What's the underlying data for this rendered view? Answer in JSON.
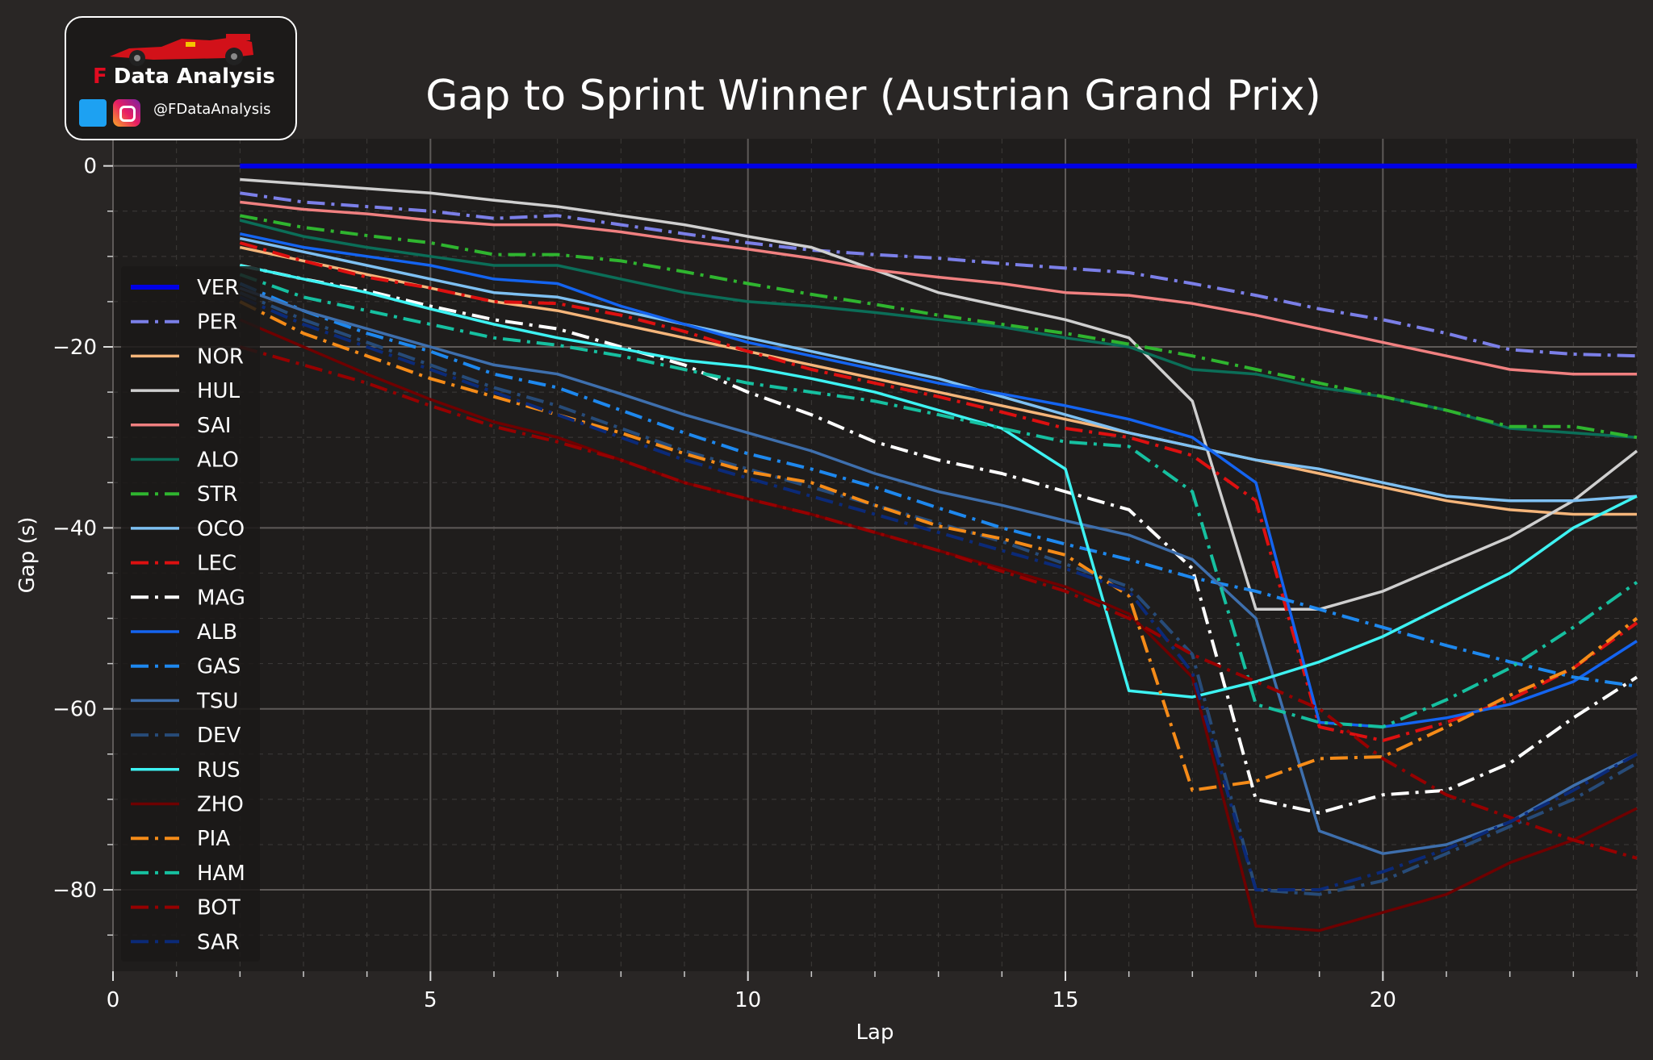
{
  "logo": {
    "brand_letter": "F",
    "brand_text": "Data Analysis",
    "handle": "@FDataAnalysis",
    "icons": [
      "race-car-icon",
      "twitter-icon",
      "instagram-icon"
    ]
  },
  "colors": {
    "background": "#292625",
    "plot_background": "#1f1d1c",
    "grid": "#5e5a58",
    "text": "#ffffff"
  },
  "chart_data": {
    "type": "line",
    "title": "Gap to Sprint Winner (Austrian Grand Prix)",
    "xlabel": "Lap",
    "ylabel": "Gap (s)",
    "xlim": [
      0,
      24
    ],
    "ylim": [
      -89,
      3
    ],
    "xticks": [
      0,
      5,
      10,
      15,
      20
    ],
    "yticks": [
      0,
      -20,
      -40,
      -60,
      -80
    ],
    "grid": true,
    "legend_position": "left",
    "x": [
      2,
      3,
      4,
      5,
      6,
      7,
      8,
      9,
      10,
      11,
      12,
      13,
      14,
      15,
      16,
      17,
      18,
      19,
      20,
      21,
      22,
      23,
      24
    ],
    "series": [
      {
        "name": "VER",
        "color": "#0000e6",
        "dash": "solid",
        "width": 6,
        "values": [
          0,
          0,
          0,
          0,
          0,
          0,
          0,
          0,
          0,
          0,
          0,
          0,
          0,
          0,
          0,
          0,
          0,
          0,
          0,
          0,
          0,
          0,
          0
        ]
      },
      {
        "name": "PER",
        "color": "#7b7fe8",
        "dash": "dashdot",
        "width": 4,
        "values": [
          -3,
          -4,
          -4.5,
          -5,
          -5.8,
          -5.5,
          -6.5,
          -7.5,
          -8.5,
          -9.3,
          -9.8,
          -10.2,
          -10.8,
          -11.3,
          -11.8,
          -13,
          -14.3,
          -15.8,
          -17,
          -18.5,
          -20.3,
          -20.8,
          -21
        ]
      },
      {
        "name": "NOR",
        "color": "#f5b57a",
        "dash": "solid",
        "width": 3.5,
        "values": [
          -9,
          -10.5,
          -12,
          -13.5,
          -15,
          -16,
          -17.5,
          -19,
          -20.5,
          -22,
          -23.5,
          -25,
          -26.5,
          -28,
          -29.5,
          -31,
          -32.5,
          -34,
          -35.5,
          -37,
          -38,
          -38.5,
          -38.5
        ]
      },
      {
        "name": "HUL",
        "color": "#cfcfcf",
        "dash": "solid",
        "width": 3.5,
        "values": [
          -1.5,
          -2,
          -2.5,
          -3,
          -3.8,
          -4.5,
          -5.5,
          -6.5,
          -7.8,
          -9,
          -11.5,
          -14,
          -15.5,
          -17,
          -19,
          -26,
          -49,
          -49,
          -47,
          -44,
          -41,
          -37,
          -31.5
        ]
      },
      {
        "name": "SAI",
        "color": "#f08080",
        "dash": "solid",
        "width": 3.5,
        "values": [
          -4,
          -4.8,
          -5.3,
          -6,
          -6.5,
          -6.5,
          -7.3,
          -8.3,
          -9.2,
          -10.2,
          -11.5,
          -12.3,
          -13,
          -14,
          -14.3,
          -15.2,
          -16.5,
          -18,
          -19.5,
          -21,
          -22.5,
          -23,
          -23
        ]
      },
      {
        "name": "ALO",
        "color": "#0b6e58",
        "dash": "solid",
        "width": 3.5,
        "values": [
          -6,
          -7.8,
          -9,
          -10,
          -11,
          -11,
          -12.5,
          -14,
          -15,
          -15.5,
          -16.2,
          -17,
          -17.8,
          -19,
          -20,
          -22.5,
          -23,
          -24.5,
          -25.5,
          -27,
          -29,
          -29.5,
          -30
        ]
      },
      {
        "name": "STR",
        "color": "#2fb52f",
        "dash": "dashdot",
        "width": 4,
        "values": [
          -5.5,
          -6.8,
          -7.7,
          -8.5,
          -9.8,
          -9.8,
          -10.5,
          -11.7,
          -13,
          -14.2,
          -15.3,
          -16.5,
          -17.5,
          -18.5,
          -19.7,
          -21,
          -22.5,
          -24,
          -25.5,
          -27,
          -28.8,
          -28.8,
          -30
        ]
      },
      {
        "name": "OCO",
        "color": "#7ec0f2",
        "dash": "solid",
        "width": 3.5,
        "values": [
          -8,
          -9.5,
          -11,
          -12.5,
          -14,
          -14.5,
          -16,
          -17.5,
          -19,
          -20.5,
          -22,
          -23.5,
          -25.5,
          -27.5,
          -29.5,
          -31,
          -32.5,
          -33.5,
          -35,
          -36.5,
          -37,
          -37,
          -36.5
        ]
      },
      {
        "name": "LEC",
        "color": "#dd1010",
        "dash": "dashdot",
        "width": 4,
        "values": [
          -8.5,
          -10.5,
          -12.3,
          -13.5,
          -15,
          -15.2,
          -16.5,
          -18.3,
          -20.5,
          -22.5,
          -24,
          -25.5,
          -27.2,
          -29,
          -30,
          -32,
          -37,
          -62,
          -63.5,
          -61.5,
          -59,
          -55.5,
          -50.5
        ]
      },
      {
        "name": "MAG",
        "color": "#ffffff",
        "dash": "dashdot",
        "width": 4,
        "values": [
          -11,
          -12.5,
          -13.8,
          -15.5,
          -17,
          -18,
          -20,
          -22,
          -25,
          -27.5,
          -30.5,
          -32.5,
          -34,
          -36,
          -38,
          -44.5,
          -70,
          -71.5,
          -69.5,
          -69,
          -66,
          -61,
          -56.5
        ]
      },
      {
        "name": "ALB",
        "color": "#1464f0",
        "dash": "solid",
        "width": 3.5,
        "values": [
          -7.5,
          -9,
          -10,
          -11,
          -12.5,
          -13,
          -15.5,
          -17.5,
          -19.5,
          -21,
          -22.5,
          -24,
          -25.2,
          -26.5,
          -28,
          -30,
          -35,
          -61.5,
          -62,
          -61,
          -59.5,
          -57,
          -52.5
        ]
      },
      {
        "name": "GAS",
        "color": "#1e88ee",
        "dash": "dashdot",
        "width": 4,
        "values": [
          -13,
          -16,
          -18.5,
          -20.5,
          -23,
          -24.5,
          -27,
          -29.5,
          -31.8,
          -33.5,
          -35.5,
          -37.8,
          -40,
          -41.8,
          -43.5,
          -45.5,
          -47,
          -49,
          -51,
          -53,
          -54.8,
          -56.5,
          -57.5
        ]
      },
      {
        "name": "TSU",
        "color": "#3e6fad",
        "dash": "solid",
        "width": 3.5,
        "values": [
          -13.5,
          -16,
          -18,
          -20,
          -22,
          -23,
          -25.2,
          -27.5,
          -29.5,
          -31.5,
          -34,
          -36,
          -37.5,
          -39.2,
          -40.8,
          -43.5,
          -50,
          -73.5,
          -76,
          -75,
          -72.5,
          -68.5,
          -65
        ]
      },
      {
        "name": "DEV",
        "color": "#274b78",
        "dash": "dashdot",
        "width": 4,
        "values": [
          -14,
          -17,
          -19.5,
          -22,
          -24.5,
          -26.5,
          -29,
          -31.5,
          -33.5,
          -35.5,
          -37.5,
          -39.5,
          -41.5,
          -44,
          -46.5,
          -54,
          -80,
          -80.5,
          -79,
          -76,
          -73,
          -70,
          -66
        ]
      },
      {
        "name": "RUS",
        "color": "#3ef2f2",
        "dash": "solid",
        "width": 3.5,
        "values": [
          -11,
          -12.5,
          -14,
          -15.8,
          -17.5,
          -19,
          -20.2,
          -21.5,
          -22.2,
          -23.5,
          -25,
          -27,
          -29,
          -33.5,
          -58,
          -58.7,
          -57,
          -54.8,
          -52,
          -48.5,
          -45,
          -40,
          -36.5
        ]
      },
      {
        "name": "ZHO",
        "color": "#6e0000",
        "dash": "solid",
        "width": 3.5,
        "values": [
          -17,
          -20,
          -23,
          -25.8,
          -28.3,
          -30,
          -32.5,
          -35,
          -36.8,
          -38.5,
          -40.5,
          -42.5,
          -44.5,
          -46.5,
          -49.5,
          -56.5,
          -84,
          -84.5,
          -82.5,
          -80.5,
          -77,
          -74.5,
          -71
        ]
      },
      {
        "name": "PIA",
        "color": "#f58b18",
        "dash": "dashdot",
        "width": 4,
        "values": [
          -15,
          -18.5,
          -21,
          -23.5,
          -25.5,
          -27.5,
          -29.5,
          -31.8,
          -33.8,
          -35,
          -37.5,
          -39.8,
          -41.2,
          -43,
          -47.5,
          -69,
          -68,
          -65.5,
          -65.3,
          -62,
          -58.5,
          -55.5,
          -50
        ]
      },
      {
        "name": "HAM",
        "color": "#16c0a0",
        "dash": "dashdot",
        "width": 4,
        "values": [
          -12,
          -14.5,
          -16,
          -17.5,
          -19,
          -19.8,
          -21,
          -22.5,
          -24,
          -25,
          -26,
          -27.5,
          -29,
          -30.5,
          -31,
          -36,
          -59.5,
          -61.5,
          -62,
          -59,
          -55.5,
          -51,
          -46
        ]
      },
      {
        "name": "BOT",
        "color": "#960000",
        "dash": "dashdot",
        "width": 4,
        "values": [
          -20,
          -22,
          -24,
          -26.5,
          -28.8,
          -30.5,
          -32.5,
          -35,
          -36.8,
          -38.5,
          -40.5,
          -42.5,
          -44.8,
          -47,
          -50,
          -54,
          -57,
          -60,
          -65.5,
          -69.5,
          -72,
          -74.5,
          -76.5
        ]
      },
      {
        "name": "SAR",
        "color": "#0b2a78",
        "dash": "dashdot",
        "width": 4,
        "values": [
          -14.5,
          -17.5,
          -20,
          -22.5,
          -25,
          -27.5,
          -30,
          -32.5,
          -34.5,
          -36.5,
          -38.5,
          -40.5,
          -42.5,
          -44.5,
          -47,
          -56,
          -80,
          -80,
          -78,
          -75.5,
          -72.5,
          -69,
          -65
        ]
      }
    ]
  }
}
